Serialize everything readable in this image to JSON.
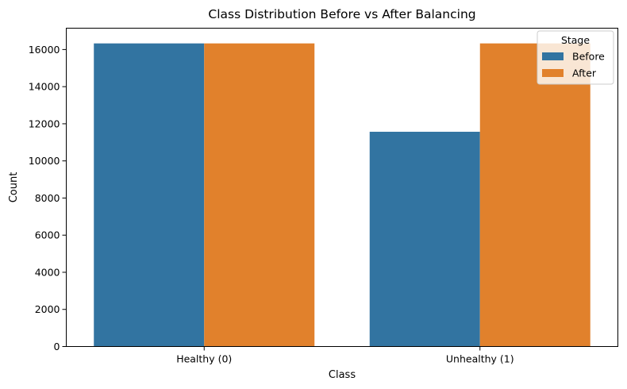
{
  "chart_data": {
    "type": "bar",
    "title": "Class Distribution Before vs After Balancing",
    "xlabel": "Class",
    "ylabel": "Count",
    "categories": [
      "Healthy (0)",
      "Unhealthy (1)"
    ],
    "series": [
      {
        "name": "Before",
        "color": "#3274a1",
        "values": [
          16330,
          11570
        ]
      },
      {
        "name": "After",
        "color": "#e1812c",
        "values": [
          16330,
          16330
        ]
      }
    ],
    "ylim": [
      0,
      17150
    ],
    "yticks": [
      0,
      2000,
      4000,
      6000,
      8000,
      10000,
      12000,
      14000,
      16000
    ],
    "grid": false,
    "legend": {
      "title": "Stage",
      "placement": "top-right"
    }
  }
}
